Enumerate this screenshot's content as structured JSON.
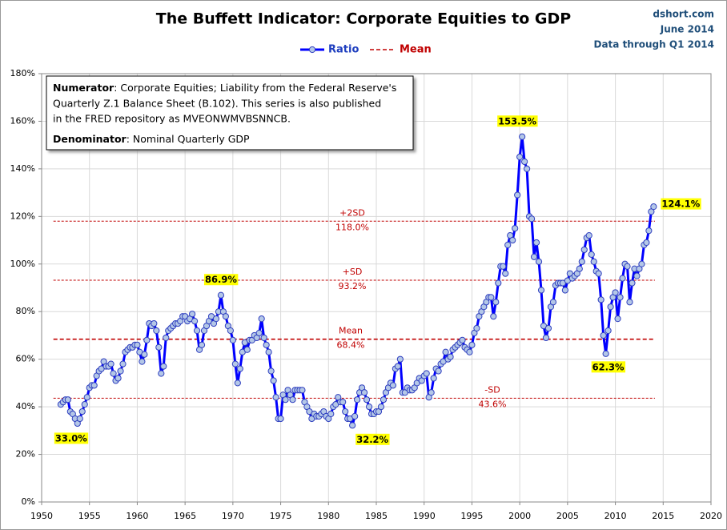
{
  "chart_data": {
    "type": "line",
    "title": "The Buffett Indicator: Corporate Equities to GDP",
    "source_lines": [
      "dshort.com",
      "June 2014",
      "Data through Q1 2014"
    ],
    "note": {
      "numerator_label": "Numerator",
      "numerator_lines": [
        ": Corporate Equities; Liability from the Federal Reserve's",
        "Quarterly Z.1 Balance Sheet (B.102). This series is also published",
        "in the FRED repository  as MVEONWMVBSNNCB."
      ],
      "denominator_label": "Denominator",
      "denominator_text": ": Nominal Quarterly GDP"
    },
    "x": [
      1952,
      1952.25,
      1952.5,
      1952.75,
      1953,
      1953.25,
      1953.5,
      1953.75,
      1954,
      1954.25,
      1954.5,
      1954.75,
      1955,
      1955.25,
      1955.5,
      1955.75,
      1956,
      1956.25,
      1956.5,
      1956.75,
      1957,
      1957.25,
      1957.5,
      1957.75,
      1958,
      1958.25,
      1958.5,
      1958.75,
      1959,
      1959.25,
      1959.5,
      1959.75,
      1960,
      1960.25,
      1960.5,
      1960.75,
      1961,
      1961.25,
      1961.5,
      1961.75,
      1962,
      1962.25,
      1962.5,
      1962.75,
      1963,
      1963.25,
      1963.5,
      1963.75,
      1964,
      1964.25,
      1964.5,
      1964.75,
      1965,
      1965.25,
      1965.5,
      1965.75,
      1966,
      1966.25,
      1966.5,
      1966.75,
      1967,
      1967.25,
      1967.5,
      1967.75,
      1968,
      1968.25,
      1968.5,
      1968.75,
      1969,
      1969.25,
      1969.5,
      1969.75,
      1970,
      1970.25,
      1970.5,
      1970.75,
      1971,
      1971.25,
      1971.5,
      1971.75,
      1972,
      1972.25,
      1972.5,
      1972.75,
      1973,
      1973.25,
      1973.5,
      1973.75,
      1974,
      1974.25,
      1974.5,
      1974.75,
      1975,
      1975.25,
      1975.5,
      1975.75,
      1976,
      1976.25,
      1976.5,
      1976.75,
      1977,
      1977.25,
      1977.5,
      1977.75,
      1978,
      1978.25,
      1978.5,
      1978.75,
      1979,
      1979.25,
      1979.5,
      1979.75,
      1980,
      1980.25,
      1980.5,
      1980.75,
      1981,
      1981.25,
      1981.5,
      1981.75,
      1982,
      1982.25,
      1982.5,
      1982.75,
      1983,
      1983.25,
      1983.5,
      1983.75,
      1984,
      1984.25,
      1984.5,
      1984.75,
      1985,
      1985.25,
      1985.5,
      1985.75,
      1986,
      1986.25,
      1986.5,
      1986.75,
      1987,
      1987.25,
      1987.5,
      1987.75,
      1988,
      1988.25,
      1988.5,
      1988.75,
      1989,
      1989.25,
      1989.5,
      1989.75,
      1990,
      1990.25,
      1990.5,
      1990.75,
      1991,
      1991.25,
      1991.5,
      1991.75,
      1992,
      1992.25,
      1992.5,
      1992.75,
      1993,
      1993.25,
      1993.5,
      1993.75,
      1994,
      1994.25,
      1994.5,
      1994.75,
      1995,
      1995.25,
      1995.5,
      1995.75,
      1996,
      1996.25,
      1996.5,
      1996.75,
      1997,
      1997.25,
      1997.5,
      1997.75,
      1998,
      1998.25,
      1998.5,
      1998.75,
      1999,
      1999.25,
      1999.5,
      1999.75,
      2000,
      2000.25,
      2000.5,
      2000.75,
      2001,
      2001.25,
      2001.5,
      2001.75,
      2002,
      2002.25,
      2002.5,
      2002.75,
      2003,
      2003.25,
      2003.5,
      2003.75,
      2004,
      2004.25,
      2004.5,
      2004.75,
      2005,
      2005.25,
      2005.5,
      2005.75,
      2006,
      2006.25,
      2006.5,
      2006.75,
      2007,
      2007.25,
      2007.5,
      2007.75,
      2008,
      2008.25,
      2008.5,
      2008.75,
      2009,
      2009.25,
      2009.5,
      2009.75,
      2010,
      2010.25,
      2010.5,
      2010.75,
      2011,
      2011.25,
      2011.5,
      2011.75,
      2012,
      2012.25,
      2012.5,
      2012.75,
      2013,
      2013.25,
      2013.5,
      2013.75,
      2014
    ],
    "series": [
      {
        "name": "Ratio",
        "color": "#0000ff",
        "values": [
          41,
          42,
          43,
          43,
          38,
          37,
          35,
          33.0,
          35,
          38,
          41,
          44,
          48,
          49,
          49,
          53,
          55,
          56,
          59,
          57,
          57,
          58,
          54,
          51,
          52,
          55,
          58,
          63,
          64,
          65,
          65,
          66,
          66,
          63,
          59,
          62,
          68,
          75,
          74,
          75,
          72,
          65,
          54,
          57,
          69,
          72,
          73,
          74,
          75,
          75,
          76,
          78,
          78,
          76,
          77,
          79,
          76,
          72,
          64,
          66,
          72,
          74,
          76,
          78,
          75,
          77,
          80,
          86.9,
          80,
          78,
          74,
          72,
          68,
          58,
          50,
          56,
          63,
          67,
          64,
          68,
          68,
          70,
          69,
          71,
          77,
          69,
          66,
          63,
          55,
          51,
          44,
          35,
          35,
          45,
          43,
          47,
          45,
          43,
          47,
          47,
          47,
          47,
          42,
          40,
          38,
          35,
          37,
          36,
          36,
          37,
          38,
          36,
          35,
          37,
          40,
          41,
          44,
          42,
          42,
          38,
          35,
          35,
          32.2,
          36,
          43,
          46,
          48,
          46,
          43,
          40,
          37,
          37,
          38,
          38,
          40,
          43,
          46,
          48,
          50,
          49,
          56,
          57,
          60,
          46,
          46,
          48,
          47,
          47,
          48,
          50,
          52,
          51,
          53,
          54,
          44,
          46,
          52,
          56,
          55,
          58,
          59,
          63,
          60,
          61,
          64,
          65,
          66,
          67,
          68,
          65,
          64,
          63,
          66,
          71,
          73,
          78,
          80,
          82,
          84,
          86,
          86,
          78,
          84,
          92,
          99,
          99,
          96,
          108,
          112,
          110,
          115,
          129,
          145,
          153.5,
          143,
          140,
          120,
          119,
          103,
          109,
          101,
          89,
          74,
          69,
          73,
          82,
          84,
          91,
          92,
          92,
          92,
          89,
          93,
          96,
          94,
          95,
          96,
          98,
          101,
          106,
          111,
          112,
          104,
          101,
          97,
          96,
          85,
          70,
          62.3,
          72,
          82,
          86,
          88,
          77,
          86,
          94,
          100,
          99,
          84,
          92,
          98,
          95,
          98,
          100,
          108,
          109,
          114,
          122,
          124.1
        ]
      }
    ],
    "point_labels": [
      {
        "x": 1953.75,
        "value": 33.0,
        "label": "33.0%"
      },
      {
        "x": 1968.75,
        "value": 86.9,
        "label": "86.9%"
      },
      {
        "x": 1982.5,
        "value": 32.2,
        "label": "32.2%"
      },
      {
        "x": 2000.25,
        "value": 153.5,
        "label": "153.5%"
      },
      {
        "x": 2009,
        "value": 62.3,
        "label": "62.3%"
      },
      {
        "x": 2014,
        "value": 124.1,
        "label": "124.1%"
      }
    ],
    "reference_lines": [
      {
        "label": "+2SD",
        "value": 118.0,
        "value_label": "118.0%"
      },
      {
        "label": "+SD",
        "value": 93.2,
        "value_label": "93.2%"
      },
      {
        "label": "Mean",
        "value": 68.4,
        "value_label": "68.4%"
      },
      {
        "label": "-SD",
        "value": 43.6,
        "value_label": "43.6%"
      }
    ],
    "reference_color": "#c00000",
    "xlim": [
      1950,
      2020
    ],
    "xticks": [
      1950,
      1955,
      1960,
      1965,
      1970,
      1975,
      1980,
      1985,
      1990,
      1995,
      2000,
      2005,
      2010,
      2015,
      2020
    ],
    "ylim": [
      0,
      180
    ],
    "yticks": [
      {
        "value": 0,
        "label": "0%"
      },
      {
        "value": 20,
        "label": "20%"
      },
      {
        "value": 40,
        "label": "40%"
      },
      {
        "value": 60,
        "label": "60%"
      },
      {
        "value": 80,
        "label": "80%"
      },
      {
        "value": 100,
        "label": "100%"
      },
      {
        "value": 120,
        "label": "120%"
      },
      {
        "value": 140,
        "label": "140%"
      },
      {
        "value": 160,
        "label": "160%"
      },
      {
        "value": 180,
        "label": "180%"
      }
    ],
    "grid": true
  }
}
